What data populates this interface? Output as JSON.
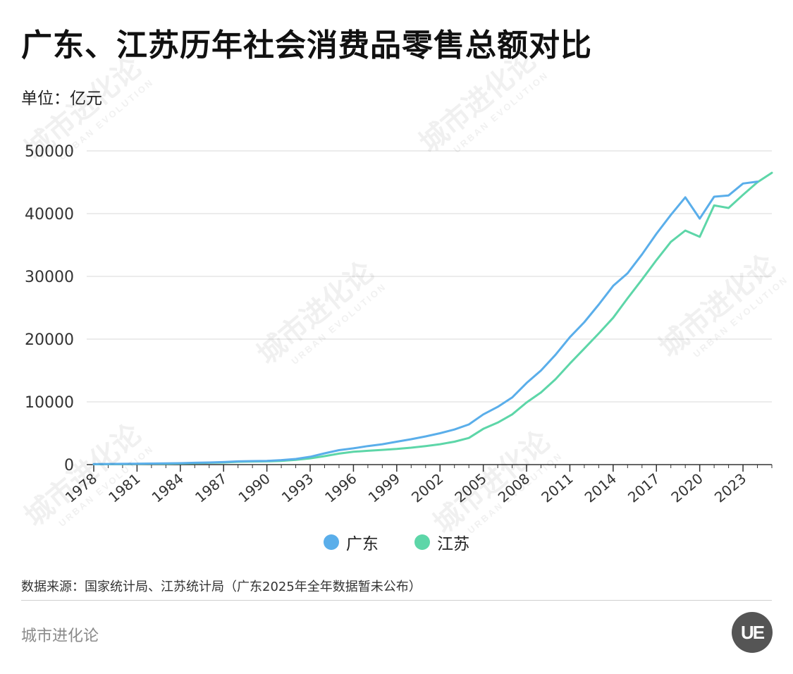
{
  "title": "广东、江苏历年社会消费品零售总额对比",
  "unit": "单位：亿元",
  "source": "数据来源：国家统计局、江苏统计局（广东2025年全年数据暂未公布）",
  "brand": "城市进化论",
  "logo_text": "UE",
  "watermark": {
    "cn": "城市进化论",
    "en": "URBAN EVOLUTION"
  },
  "colors": {
    "guangdong": "#5aaeea",
    "jiangsu": "#5dd6a8",
    "grid": "#d9d9d9",
    "axis": "#333333"
  },
  "chart_data": {
    "type": "line",
    "title": "广东、江苏历年社会消费品零售总额对比",
    "ylabel": "单位：亿元",
    "xlabel": "",
    "ylim": [
      0,
      50000
    ],
    "yticks": [
      0,
      10000,
      20000,
      30000,
      40000,
      50000
    ],
    "xtick_labels": [
      "1978",
      "1981",
      "1984",
      "1987",
      "1990",
      "1993",
      "1996",
      "1999",
      "2002",
      "2005",
      "2008",
      "2011",
      "2014",
      "2017",
      "2020",
      "2023"
    ],
    "x": [
      1978,
      1979,
      1980,
      1981,
      1982,
      1983,
      1984,
      1985,
      1986,
      1987,
      1988,
      1989,
      1990,
      1991,
      1992,
      1993,
      1994,
      1995,
      1996,
      1997,
      1998,
      1999,
      2000,
      2001,
      2002,
      2003,
      2004,
      2005,
      2006,
      2007,
      2008,
      2009,
      2010,
      2011,
      2012,
      2013,
      2014,
      2015,
      2016,
      2017,
      2018,
      2019,
      2020,
      2021,
      2022,
      2023,
      2024,
      2025
    ],
    "series": [
      {
        "name": "广东",
        "color": "#5aaeea",
        "values": [
          80,
          100,
          120,
          150,
          170,
          200,
          230,
          290,
          340,
          400,
          520,
          560,
          600,
          720,
          900,
          1250,
          1800,
          2300,
          2600,
          2950,
          3250,
          3650,
          4050,
          4500,
          5000,
          5600,
          6400,
          8000,
          9200,
          10700,
          13000,
          15000,
          17500,
          20300,
          22700,
          25500,
          28500,
          30500,
          33500,
          36800,
          39800,
          42600,
          39200,
          42700,
          42900,
          44800,
          45100,
          null
        ]
      },
      {
        "name": "江苏",
        "color": "#5dd6a8",
        "values": [
          60,
          70,
          90,
          110,
          130,
          150,
          180,
          240,
          290,
          340,
          450,
          490,
          520,
          600,
          750,
          1000,
          1350,
          1750,
          2050,
          2200,
          2350,
          2500,
          2700,
          2950,
          3250,
          3650,
          4250,
          5700,
          6700,
          8000,
          9900,
          11500,
          13600,
          16100,
          18500,
          20900,
          23400,
          26500,
          29500,
          32600,
          35500,
          37300,
          36300,
          41300,
          40900,
          43000,
          45000,
          46500
        ]
      }
    ]
  }
}
